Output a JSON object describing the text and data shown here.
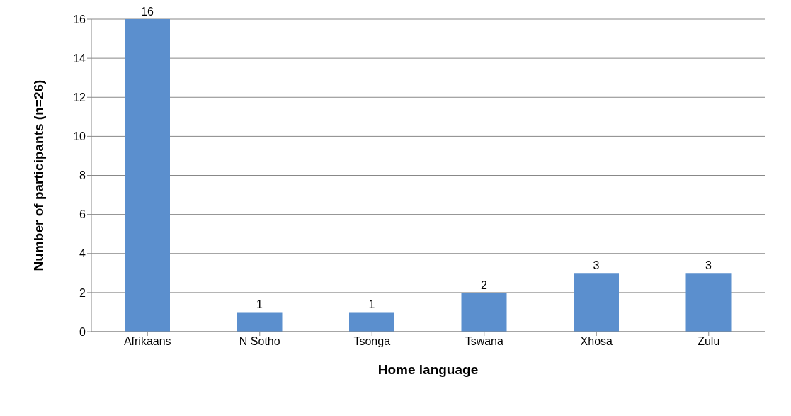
{
  "chart_data": {
    "type": "bar",
    "xlabel": "Home language",
    "ylabel": "Number of participants (n=26)",
    "categories": [
      "Afrikaans",
      "N Sotho",
      "Tsonga",
      "Tswana",
      "Xhosa",
      "Zulu"
    ],
    "values": [
      16,
      1,
      1,
      2,
      3,
      3
    ],
    "color": "#5b8fce",
    "ylim": [
      0,
      16
    ],
    "yticks": [
      0,
      2,
      4,
      6,
      8,
      10,
      12,
      14,
      16
    ],
    "grid": "y",
    "data_labels": true
  }
}
